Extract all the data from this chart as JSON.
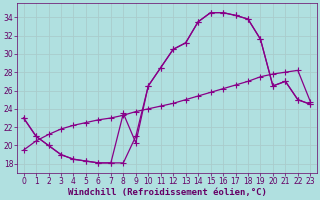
{
  "background_color": "#b0e0e0",
  "grid_color": "#aacccc",
  "line_color": "#880088",
  "marker": "+",
  "markersize": 4,
  "linewidth": 0.9,
  "markeredgewidth": 0.8,
  "xlabel": "Windchill (Refroidissement éolien,°C)",
  "xlabel_fontsize": 6.5,
  "xlabel_color": "#660066",
  "tick_color": "#660066",
  "tick_fontsize": 5.5,
  "ylim": [
    17.0,
    35.5
  ],
  "xlim": [
    -0.5,
    23.5
  ],
  "yticks": [
    18,
    20,
    22,
    24,
    26,
    28,
    30,
    32,
    34
  ],
  "xticks": [
    0,
    1,
    2,
    3,
    4,
    5,
    6,
    7,
    8,
    9,
    10,
    11,
    12,
    13,
    14,
    15,
    16,
    17,
    18,
    19,
    20,
    21,
    22,
    23
  ],
  "line1_x": [
    0,
    1,
    2,
    3,
    4,
    5,
    6,
    7,
    8,
    9,
    10,
    11,
    12,
    13,
    14,
    15,
    16,
    17,
    18,
    19,
    20,
    21,
    22,
    23
  ],
  "line1_y": [
    23.0,
    21.0,
    20.0,
    19.0,
    18.5,
    18.3,
    18.1,
    18.1,
    18.1,
    21.0,
    26.5,
    28.5,
    30.5,
    31.2,
    33.5,
    34.5,
    34.5,
    34.2,
    33.8,
    31.6,
    26.5,
    27.0,
    25.0,
    24.5
  ],
  "line2_x": [
    0,
    1,
    2,
    3,
    4,
    5,
    6,
    7,
    8,
    9,
    10,
    11,
    12,
    13,
    14,
    15,
    16,
    17,
    18,
    19,
    20,
    21,
    22,
    23
  ],
  "line2_y": [
    23.0,
    21.0,
    20.0,
    19.0,
    18.5,
    18.3,
    18.1,
    18.1,
    23.5,
    20.3,
    26.5,
    28.5,
    30.5,
    31.2,
    33.5,
    34.5,
    34.5,
    34.2,
    33.8,
    31.6,
    26.5,
    27.0,
    25.0,
    24.5
  ],
  "line3_x": [
    0,
    1,
    2,
    3,
    4,
    5,
    6,
    7,
    8,
    9,
    10,
    11,
    12,
    13,
    14,
    15,
    16,
    17,
    18,
    19,
    20,
    21,
    22,
    23
  ],
  "line3_y": [
    19.5,
    20.5,
    21.2,
    21.8,
    22.2,
    22.5,
    22.8,
    23.0,
    23.3,
    23.7,
    24.0,
    24.3,
    24.6,
    25.0,
    25.4,
    25.8,
    26.2,
    26.6,
    27.0,
    27.5,
    27.8,
    28.0,
    28.2,
    24.8
  ]
}
